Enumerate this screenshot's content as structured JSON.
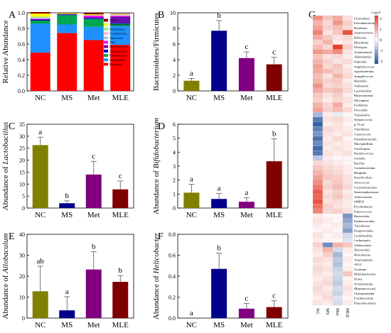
{
  "figure": {
    "panel_letters": [
      "A",
      "B",
      "C",
      "D",
      "E",
      "F",
      "G"
    ]
  },
  "chart_data": [
    {
      "panel": "A",
      "type": "bar",
      "stacked": true,
      "ylabel": "Relative Abundance",
      "categories": [
        "NC",
        "MS",
        "Met",
        "MLE"
      ],
      "ylim": [
        0,
        1.0
      ],
      "yticks": [
        "0.0",
        "0.2",
        "0.4",
        "0.6",
        "0.8",
        "1.0"
      ],
      "series": [
        {
          "name": "Firmicutes",
          "color": "#ff0000",
          "values": [
            0.49,
            0.74,
            0.65,
            0.59
          ]
        },
        {
          "name": "Bacteroidetes",
          "color": "#1e90ff",
          "values": [
            0.37,
            0.11,
            0.17,
            0.24
          ]
        },
        {
          "name": "Proteobacteria",
          "color": "#00a651",
          "values": [
            0.04,
            0.12,
            0.1,
            0.03
          ]
        },
        {
          "name": "Actinobacteria",
          "color": "#0000c8",
          "values": [
            0.01,
            0.01,
            0.01,
            0.01
          ]
        },
        {
          "name": "Deferribacteres",
          "color": "#6a0dad",
          "values": [
            0.01,
            0.005,
            0.015,
            0.08
          ]
        },
        {
          "name": "TM7",
          "color": "#ff00ff",
          "values": [
            0.005,
            0.0,
            0.02,
            0.01
          ]
        },
        {
          "name": "Tenericutes",
          "color": "#b0c4de",
          "values": [
            0.01,
            0.0,
            0.0,
            0.005
          ]
        },
        {
          "name": "Cyanobacteria",
          "color": "#ffb6c1",
          "values": [
            0.005,
            0.0,
            0.0,
            0.01
          ]
        },
        {
          "name": "Fusobacteria",
          "color": "#90ee90",
          "values": [
            0.01,
            0.0,
            0.005,
            0.005
          ]
        },
        {
          "name": "Verrucomicrobia",
          "color": "#ffff00",
          "values": [
            0.04,
            0.01,
            0.01,
            0.005
          ]
        },
        {
          "name": "Other",
          "color": "#8b0000",
          "values": [
            0.02,
            0.005,
            0.02,
            0.005
          ]
        }
      ],
      "legend_position": "right"
    },
    {
      "panel": "B",
      "type": "bar",
      "ylabel": "Bacteroidetes/Firmicutes",
      "categories": [
        "NC",
        "MS",
        "Met",
        "MLE"
      ],
      "values": [
        1.3,
        7.7,
        4.2,
        3.4
      ],
      "errors": [
        0.3,
        1.3,
        0.8,
        0.9
      ],
      "letters": [
        "a",
        "b",
        "c",
        "c"
      ],
      "colors": [
        "#808000",
        "#00008b",
        "#800080",
        "#800000"
      ],
      "ylim": [
        0,
        10
      ],
      "yticks": [
        "0",
        "2",
        "4",
        "6",
        "8",
        "10"
      ]
    },
    {
      "panel": "C",
      "type": "bar",
      "ylabel_prefix": "Abundance of ",
      "ylabel_taxon": "Lactobacillus",
      "categories": [
        "NC",
        "MS",
        "Met",
        "MLE"
      ],
      "values": [
        26.3,
        2.0,
        14.0,
        7.8
      ],
      "errors": [
        3.3,
        1.0,
        5.5,
        3.5
      ],
      "letters": [
        "a",
        "b",
        "c",
        "c"
      ],
      "colors": [
        "#808000",
        "#00008b",
        "#800080",
        "#800000"
      ],
      "ylim": [
        0,
        35
      ],
      "yticks": [
        "0",
        "5",
        "10",
        "15",
        "20",
        "25",
        "30",
        "35"
      ]
    },
    {
      "panel": "D",
      "type": "bar",
      "ylabel_prefix": "Abundance of ",
      "ylabel_taxon": "Bifidobacterium",
      "categories": [
        "NC",
        "MS",
        "Met",
        "MLE"
      ],
      "values": [
        1.1,
        0.65,
        0.45,
        3.35
      ],
      "errors": [
        0.6,
        0.4,
        0.3,
        1.6
      ],
      "letters": [
        "a",
        "a",
        "a",
        "b"
      ],
      "colors": [
        "#808000",
        "#00008b",
        "#800080",
        "#800000"
      ],
      "ylim": [
        0,
        6
      ],
      "yticks": [
        "0",
        "1",
        "2",
        "3",
        "4",
        "5",
        "6"
      ]
    },
    {
      "panel": "E",
      "type": "bar",
      "ylabel_prefix": "Abundance of ",
      "ylabel_taxon": "Allobaculum",
      "categories": [
        "NC",
        "MS",
        "Met",
        "MLE"
      ],
      "values": [
        12.8,
        3.7,
        23.2,
        17.3
      ],
      "errors": [
        12.0,
        6.5,
        8.5,
        3.0
      ],
      "letters": [
        "ab",
        "a",
        "b",
        "b"
      ],
      "colors": [
        "#808000",
        "#00008b",
        "#800080",
        "#800000"
      ],
      "ylim": [
        0,
        40
      ],
      "yticks": [
        "0",
        "10",
        "20",
        "30",
        "40"
      ]
    },
    {
      "panel": "F",
      "type": "bar",
      "ylabel_prefix": "Abundance of ",
      "ylabel_taxon": "Helicobacter",
      "categories": [
        "NC",
        "MS",
        "Met",
        "MLE"
      ],
      "values": [
        0.0,
        0.47,
        0.09,
        0.105
      ],
      "errors": [
        0.0,
        0.15,
        0.05,
        0.06
      ],
      "letters": [
        "a",
        "b",
        "c",
        "c"
      ],
      "colors": [
        "#808000",
        "#00008b",
        "#800080",
        "#800000"
      ],
      "ylim": [
        0,
        0.8
      ],
      "yticks": [
        "0.0",
        "0.2",
        "0.4",
        "0.6",
        "0.8"
      ]
    },
    {
      "panel": "G",
      "type": "heatmap",
      "columns": [
        "NC",
        "MS",
        "Met",
        "MLE"
      ],
      "colorbar_label": "Log10",
      "colorbar_ticks": [
        "2",
        "1",
        "0",
        "-1",
        "-2"
      ],
      "color_scale": {
        "low": "#1f4e9c",
        "mid": "#ffffff",
        "high": "#e8402a"
      },
      "rows": [
        {
          "genus": "Clostridium",
          "values": [
            1.2,
            0.6,
            0.9,
            0.3
          ]
        },
        {
          "genus": "Faecalibacterium",
          "values": [
            0.8,
            0.4,
            1.1,
            0.5
          ]
        },
        {
          "genus": "Roseburia",
          "values": [
            1.0,
            0.5,
            0.7,
            0.4
          ]
        },
        {
          "genus": "Anaerotruncus",
          "values": [
            1.3,
            0.3,
            0.6,
            1.8
          ]
        },
        {
          "genus": "Ralstonia",
          "values": [
            0.9,
            0.6,
            0.3,
            0.4
          ]
        },
        {
          "genus": "Rhizobium",
          "values": [
            0.5,
            0.8,
            0.2,
            0.3
          ]
        },
        {
          "genus": "Flexispira",
          "values": [
            0.7,
            0.4,
            2.0,
            0.5
          ]
        },
        {
          "genus": "Acinetobacter",
          "values": [
            1.1,
            0.9,
            1.2,
            0.3
          ]
        },
        {
          "genus": "Akkermansia",
          "values": [
            0.6,
            0.3,
            0.4,
            0.2
          ]
        },
        {
          "genus": "Sutterella",
          "values": [
            0.8,
            0.5,
            0.3,
            0.4
          ]
        },
        {
          "genus": "Staphylococcus",
          "values": [
            1.0,
            0.4,
            0.6,
            0.2
          ]
        },
        {
          "genus": "Agrobacterium",
          "values": [
            0.9,
            0.7,
            0.5,
            0.3
          ]
        },
        {
          "genus": "Jeotgalicoccus",
          "values": [
            0.7,
            0.3,
            0.8,
            0.4
          ]
        },
        {
          "genus": "Rikenella",
          "values": [
            0.8,
            0.5,
            0.6,
            0.2
          ]
        },
        {
          "genus": "Veillonella",
          "values": [
            1.1,
            0.4,
            0.5,
            0.3
          ]
        },
        {
          "genus": "Lactobacillus",
          "values": [
            0.9,
            0.6,
            0.7,
            0.4
          ]
        },
        {
          "genus": "Butyricimonas",
          "values": [
            0.6,
            0.3,
            0.5,
            0.2
          ]
        },
        {
          "genus": "Mycoplana",
          "values": [
            0.5,
            0.2,
            0.4,
            0.3
          ]
        },
        {
          "genus": "Facklamia",
          "values": [
            0.8,
            0.4,
            0.9,
            0.2
          ]
        },
        {
          "genus": "Prevotella",
          "values": [
            1.0,
            0.5,
            0.7,
            0.4
          ]
        },
        {
          "genus": "Trabulsiella",
          "values": [
            -0.8,
            0.2,
            -0.2,
            0.1
          ]
        },
        {
          "genus": "Streptococcus",
          "values": [
            -1.5,
            0.3,
            0.4,
            0.2
          ]
        },
        {
          "genus": "p-75-a5",
          "values": [
            -1.8,
            0.2,
            0.3,
            0.1
          ]
        },
        {
          "genus": "Odoribacter",
          "values": [
            -1.4,
            0.4,
            0.3,
            0.2
          ]
        },
        {
          "genus": "Coprococcus",
          "values": [
            -1.2,
            0.3,
            0.2,
            0.3
          ]
        },
        {
          "genus": "Dehalobacterium",
          "values": [
            -1.6,
            0.2,
            0.4,
            0.1
          ]
        },
        {
          "genus": "Mucispirillum",
          "values": [
            -1.3,
            0.3,
            0.2,
            0.2
          ]
        },
        {
          "genus": "Oscillospira",
          "values": [
            -1.7,
            0.2,
            0.3,
            0.2
          ]
        },
        {
          "genus": "Ruminococcus",
          "values": [
            -1.5,
            0.3,
            0.2,
            0.3
          ]
        },
        {
          "genus": "Gemella",
          "values": [
            -0.6,
            0.2,
            0.1,
            0.1
          ]
        },
        {
          "genus": "Bacillus",
          "values": [
            0.4,
            0.3,
            0.2,
            0.1
          ]
        },
        {
          "genus": "Carnobacterium",
          "values": [
            0.6,
            0.4,
            0.3,
            0.2
          ]
        },
        {
          "genus": "Bilophila",
          "values": [
            0.8,
            0.5,
            0.4,
            0.2
          ]
        },
        {
          "genus": "Desulfovibrio",
          "values": [
            1.0,
            0.6,
            0.5,
            0.3
          ]
        },
        {
          "genus": "Aerococcus",
          "values": [
            1.2,
            0.4,
            0.6,
            0.3
          ]
        },
        {
          "genus": "Corynebacterium",
          "values": [
            1.4,
            0.5,
            0.7,
            0.4
          ]
        },
        {
          "genus": "Stenotrophomonas",
          "values": [
            1.7,
            0.3,
            0.5,
            0.2
          ]
        },
        {
          "genus": "Adlercreutzia",
          "values": [
            1.6,
            0.4,
            0.6,
            0.3
          ]
        },
        {
          "genus": "SMB53",
          "values": [
            1.8,
            0.3,
            0.4,
            0.2
          ]
        },
        {
          "genus": "Psychrobacter",
          "values": [
            1.5,
            0.5,
            0.3,
            0.2
          ]
        },
        {
          "genus": "Enterococcus",
          "values": [
            1.3,
            0.4,
            0.5,
            0.3
          ]
        },
        {
          "genus": "Bacteroides",
          "values": [
            0.2,
            0.1,
            0.1,
            -1.2
          ]
        },
        {
          "genus": "Parabacteroides",
          "values": [
            0.3,
            0.2,
            0.1,
            -1.0
          ]
        },
        {
          "genus": "Turicibacter",
          "values": [
            0.2,
            0.1,
            0.2,
            -0.8
          ]
        },
        {
          "genus": "Paraprevotella",
          "values": [
            0.1,
            0.2,
            0.1,
            -1.1
          ]
        },
        {
          "genus": "Lysinibacillus",
          "values": [
            0.3,
            0.1,
            0.2,
            -0.4
          ]
        },
        {
          "genus": "Lachnospira",
          "values": [
            0.2,
            0.1,
            0.1,
            -0.3
          ]
        },
        {
          "genus": "Allobaculum",
          "values": [
            0.5,
            -1.3,
            0.8,
            0.6
          ]
        },
        {
          "genus": "[Prevotella]",
          "values": [
            0.3,
            0.8,
            -0.4,
            0.2
          ]
        },
        {
          "genus": "Helicobacter",
          "values": [
            0.2,
            0.5,
            -0.8,
            0.1
          ]
        },
        {
          "genus": "Anaeroplasma",
          "values": [
            0.4,
            0.3,
            -0.6,
            0.2
          ]
        },
        {
          "genus": "AF12",
          "values": [
            0.3,
            0.2,
            -0.7,
            0.1
          ]
        },
        {
          "genus": "Gordonia",
          "values": [
            0.4,
            0.3,
            -0.5,
            0.2
          ]
        },
        {
          "genus": "Bifidobacterium",
          "values": [
            0.3,
            0.2,
            -0.4,
            0.6
          ]
        },
        {
          "genus": "Dorea",
          "values": [
            0.2,
            0.3,
            -0.5,
            0.1
          ]
        },
        {
          "genus": "Ochrobactrum",
          "values": [
            0.3,
            0.4,
            -0.6,
            0.2
          ]
        },
        {
          "genus": "[Ruminococcus]",
          "values": [
            0.4,
            0.2,
            -0.4,
            0.3
          ]
        },
        {
          "genus": "Christensenella",
          "values": [
            0.3,
            0.3,
            -0.5,
            0.2
          ]
        },
        {
          "genus": "Fusobacterium",
          "values": [
            0.2,
            0.4,
            -0.3,
            0.1
          ]
        },
        {
          "genus": "Phascolarctobact",
          "values": [
            0.3,
            0.2,
            -0.4,
            0.2
          ]
        }
      ]
    }
  ]
}
